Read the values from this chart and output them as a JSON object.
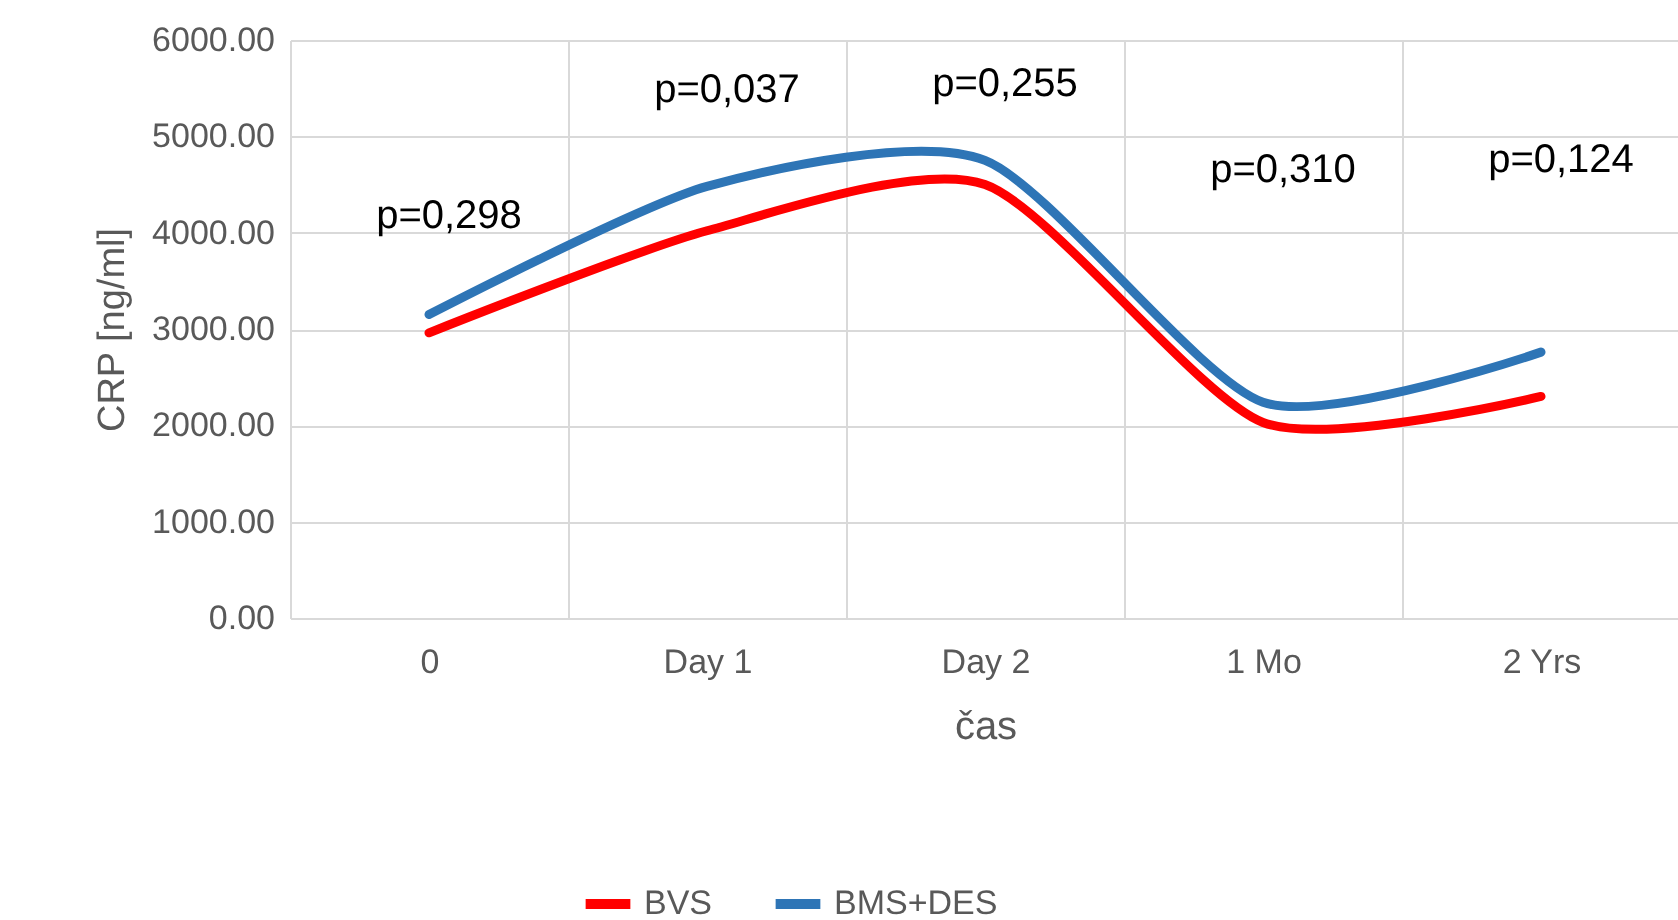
{
  "chart_data": {
    "type": "line",
    "xlabel": "čas",
    "ylabel": "CRP [ng/ml]",
    "categories": [
      "0",
      "Day 1",
      "Day 2",
      "1 Mo",
      "2 Yrs"
    ],
    "series": [
      {
        "name": "BVS",
        "color": "#ff0000",
        "values": [
          2960,
          4020,
          4500,
          2030,
          2300
        ]
      },
      {
        "name": "BMS+DES",
        "color": "#2e75b6",
        "values": [
          3150,
          4480,
          4750,
          2240,
          2760
        ]
      }
    ],
    "ylim": [
      0,
      6000
    ],
    "yticks": [
      {
        "value": 0,
        "label": "0.00"
      },
      {
        "value": 1000,
        "label": "1000.00"
      },
      {
        "value": 2000,
        "label": "2000.00"
      },
      {
        "value": 3000,
        "label": "3000.00"
      },
      {
        "value": 4000,
        "label": "4000.00"
      },
      {
        "value": 5000,
        "label": "5000.00"
      },
      {
        "value": 6000,
        "label": "6000.00"
      }
    ],
    "annotations": [
      "p=0,298",
      "p=0,037",
      "p=0,255",
      "p=0,310",
      "p=0,124"
    ],
    "grid": true,
    "legend": "bottom",
    "marker": "none",
    "line_style": "solid"
  }
}
